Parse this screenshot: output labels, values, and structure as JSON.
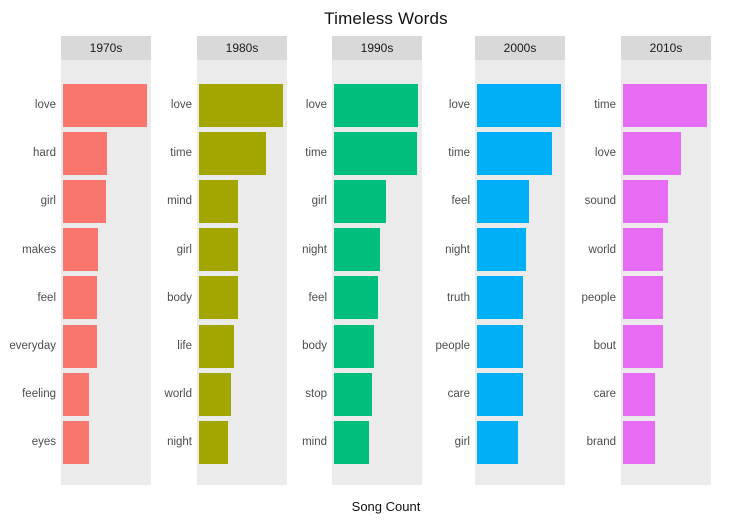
{
  "colors": {
    "panel_background": "#EBEBEB",
    "strip_background": "#D9D9D9",
    "strip_text": "#1A1A1A",
    "word_label_text": "#4D4D4D",
    "title_text": "#111111"
  },
  "chart_data": {
    "type": "bar",
    "orientation": "horizontal",
    "title": "Timeless Words",
    "xlabel": "Song Count",
    "ylabel": "",
    "grid": false,
    "legend": "none",
    "x_axis_ticks": "none shown (no numeric tick labels in image)",
    "scales": "free per facet (each facet's longest bar spans the panel)",
    "note": "values are bar lengths relative to the longest bar within each decade facet, estimated from pixels; no numeric axis labels are visible",
    "facets": [
      {
        "label": "1970s",
        "color": "#F8766D",
        "bars": [
          {
            "word": "love",
            "value": 1.0
          },
          {
            "word": "hard",
            "value": 0.52
          },
          {
            "word": "girl",
            "value": 0.51
          },
          {
            "word": "makes",
            "value": 0.41
          },
          {
            "word": "feel",
            "value": 0.4
          },
          {
            "word": "everyday",
            "value": 0.4
          },
          {
            "word": "feeling",
            "value": 0.31
          },
          {
            "word": "eyes",
            "value": 0.31
          }
        ]
      },
      {
        "label": "1980s",
        "color": "#A3A500",
        "bars": [
          {
            "word": "love",
            "value": 1.0
          },
          {
            "word": "time",
            "value": 0.79
          },
          {
            "word": "mind",
            "value": 0.46
          },
          {
            "word": "girl",
            "value": 0.46
          },
          {
            "word": "body",
            "value": 0.46
          },
          {
            "word": "life",
            "value": 0.42
          },
          {
            "word": "world",
            "value": 0.38
          },
          {
            "word": "night",
            "value": 0.34
          }
        ]
      },
      {
        "label": "1990s",
        "color": "#00BF7D",
        "bars": [
          {
            "word": "love",
            "value": 1.0
          },
          {
            "word": "time",
            "value": 0.98
          },
          {
            "word": "girl",
            "value": 0.61
          },
          {
            "word": "night",
            "value": 0.55
          },
          {
            "word": "feel",
            "value": 0.52
          },
          {
            "word": "body",
            "value": 0.47
          },
          {
            "word": "stop",
            "value": 0.45
          },
          {
            "word": "mind",
            "value": 0.42
          }
        ]
      },
      {
        "label": "2000s",
        "color": "#00B0F6",
        "bars": [
          {
            "word": "love",
            "value": 1.0
          },
          {
            "word": "time",
            "value": 0.89
          },
          {
            "word": "feel",
            "value": 0.62
          },
          {
            "word": "night",
            "value": 0.58
          },
          {
            "word": "truth",
            "value": 0.55
          },
          {
            "word": "people",
            "value": 0.55
          },
          {
            "word": "care",
            "value": 0.55
          },
          {
            "word": "girl",
            "value": 0.49
          }
        ]
      },
      {
        "label": "2010s",
        "color": "#E76BF3",
        "bars": [
          {
            "word": "time",
            "value": 1.0
          },
          {
            "word": "love",
            "value": 0.69
          },
          {
            "word": "sound",
            "value": 0.53
          },
          {
            "word": "world",
            "value": 0.47
          },
          {
            "word": "people",
            "value": 0.47
          },
          {
            "word": "bout",
            "value": 0.47
          },
          {
            "word": "care",
            "value": 0.38
          },
          {
            "word": "brand",
            "value": 0.38
          }
        ]
      }
    ]
  }
}
